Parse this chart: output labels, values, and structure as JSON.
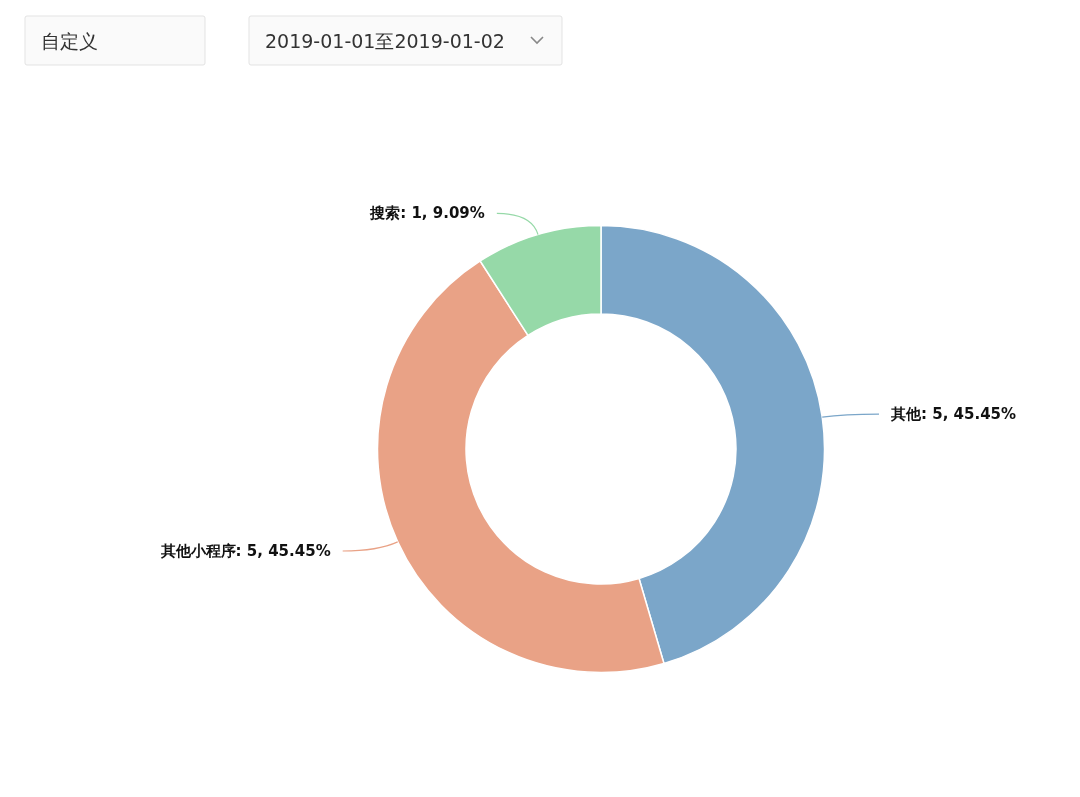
{
  "chart_data": {
    "type": "donut",
    "categories": [
      "其他",
      "其他小程序",
      "搜索"
    ],
    "values": [
      5,
      5,
      1
    ],
    "colors": [
      "#7ba6c9",
      "#e9a286",
      "#96d9a8"
    ],
    "value_labels": [
      "5, 45.45%",
      "5, 45.45%",
      "1, 9.09%"
    ],
    "legend": false,
    "annotations": [
      "自定义",
      "2019-01-01至2019-01-02"
    ]
  }
}
